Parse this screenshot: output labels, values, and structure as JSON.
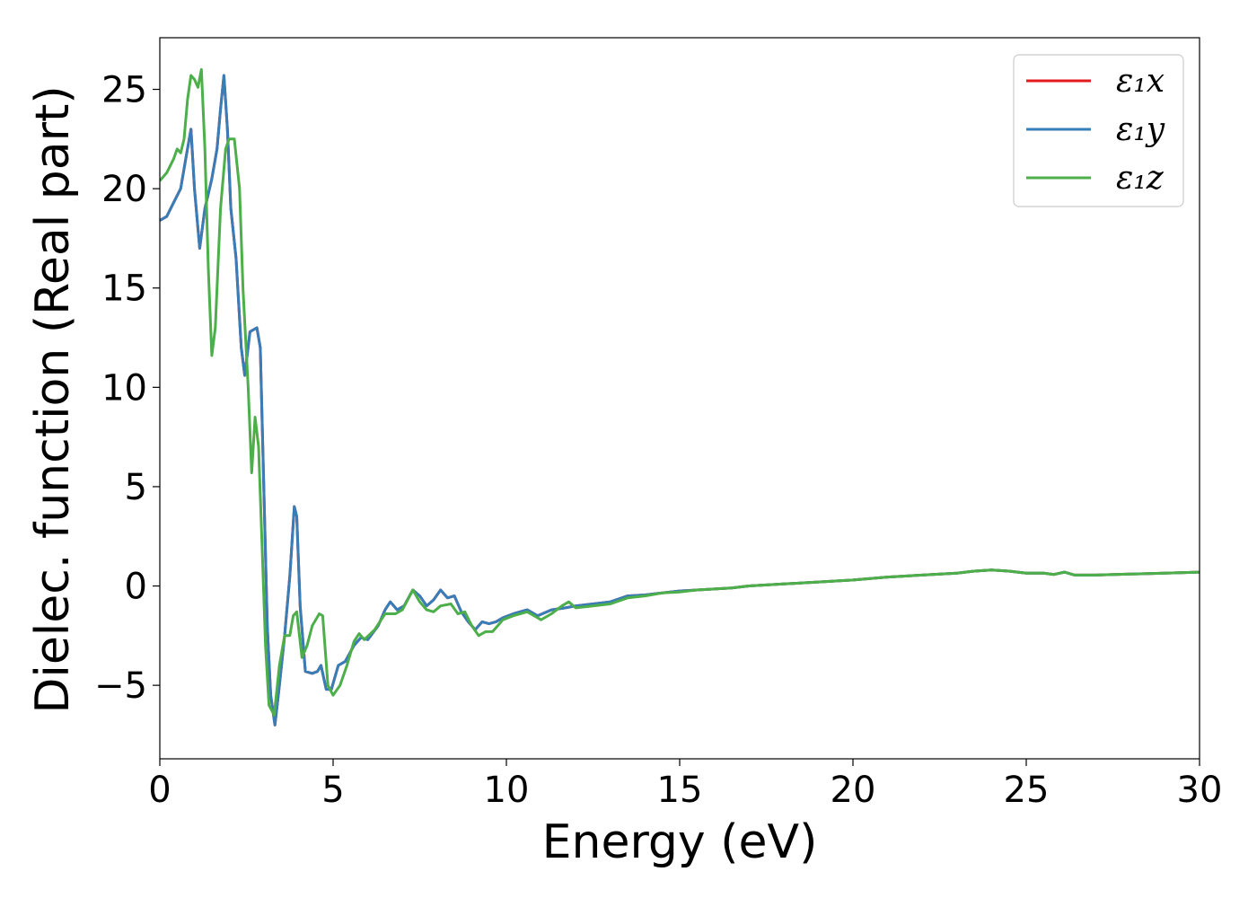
{
  "chart_data": {
    "type": "line",
    "title": "",
    "xlabel": "Energy (eV)",
    "ylabel": "Dielec. function (Real part)",
    "xlim": [
      0,
      30
    ],
    "ylim": [
      -8.7,
      27.6
    ],
    "xticks": [
      0,
      5,
      10,
      15,
      20,
      25,
      30
    ],
    "xtick_labels": [
      "0",
      "5",
      "10",
      "15",
      "20",
      "25",
      "30"
    ],
    "yticks": [
      -5,
      0,
      5,
      10,
      15,
      20,
      25
    ],
    "ytick_labels": [
      "−5",
      "0",
      "5",
      "10",
      "15",
      "20",
      "25"
    ],
    "grid": false,
    "legend_position": "top-right",
    "series": [
      {
        "name": "ε₁x",
        "color": "#e41a1c",
        "points": [
          [
            0,
            18.4
          ],
          [
            0.2,
            18.6
          ],
          [
            0.4,
            19.3
          ],
          [
            0.6,
            20.0
          ],
          [
            0.75,
            21.5
          ],
          [
            0.9,
            23.0
          ],
          [
            1.0,
            20.0
          ],
          [
            1.15,
            17.0
          ],
          [
            1.3,
            19.0
          ],
          [
            1.5,
            20.5
          ],
          [
            1.65,
            22.0
          ],
          [
            1.75,
            24.0
          ],
          [
            1.85,
            25.7
          ],
          [
            1.95,
            23.0
          ],
          [
            2.05,
            19.0
          ],
          [
            2.2,
            16.5
          ],
          [
            2.35,
            12.0
          ],
          [
            2.45,
            10.6
          ],
          [
            2.6,
            12.8
          ],
          [
            2.8,
            13.0
          ],
          [
            2.9,
            12.0
          ],
          [
            3.0,
            5.0
          ],
          [
            3.1,
            -2.0
          ],
          [
            3.2,
            -5.5
          ],
          [
            3.32,
            -7.0
          ],
          [
            3.45,
            -5.0
          ],
          [
            3.6,
            -2.5
          ],
          [
            3.75,
            0.5
          ],
          [
            3.88,
            4.0
          ],
          [
            3.95,
            3.5
          ],
          [
            4.05,
            -1.0
          ],
          [
            4.2,
            -4.3
          ],
          [
            4.4,
            -4.4
          ],
          [
            4.55,
            -4.3
          ],
          [
            4.65,
            -4.0
          ],
          [
            4.8,
            -5.2
          ],
          [
            4.95,
            -5.2
          ],
          [
            5.15,
            -4.0
          ],
          [
            5.35,
            -3.8
          ],
          [
            5.6,
            -3.0
          ],
          [
            5.8,
            -2.6
          ],
          [
            6.0,
            -2.7
          ],
          [
            6.3,
            -2.0
          ],
          [
            6.5,
            -1.2
          ],
          [
            6.65,
            -0.8
          ],
          [
            6.85,
            -1.2
          ],
          [
            7.05,
            -1.0
          ],
          [
            7.3,
            -0.2
          ],
          [
            7.5,
            -0.5
          ],
          [
            7.7,
            -1.0
          ],
          [
            7.9,
            -0.7
          ],
          [
            8.1,
            -0.2
          ],
          [
            8.3,
            -0.6
          ],
          [
            8.5,
            -0.5
          ],
          [
            8.7,
            -1.3
          ],
          [
            8.9,
            -1.8
          ],
          [
            9.1,
            -2.2
          ],
          [
            9.3,
            -1.8
          ],
          [
            9.5,
            -1.9
          ],
          [
            9.7,
            -1.8
          ],
          [
            9.9,
            -1.6
          ],
          [
            10.2,
            -1.4
          ],
          [
            10.6,
            -1.2
          ],
          [
            10.9,
            -1.5
          ],
          [
            11.3,
            -1.2
          ],
          [
            11.7,
            -1.1
          ],
          [
            12.0,
            -1.0
          ],
          [
            12.5,
            -0.9
          ],
          [
            13.0,
            -0.8
          ],
          [
            13.5,
            -0.5
          ],
          [
            14.0,
            -0.45
          ],
          [
            14.5,
            -0.35
          ],
          [
            15.0,
            -0.25
          ],
          [
            15.5,
            -0.2
          ],
          [
            16.0,
            -0.15
          ],
          [
            16.5,
            -0.1
          ],
          [
            17.0,
            0.0
          ],
          [
            18.0,
            0.1
          ],
          [
            19.0,
            0.2
          ],
          [
            20.0,
            0.3
          ],
          [
            21.0,
            0.45
          ],
          [
            22.0,
            0.55
          ],
          [
            23.0,
            0.65
          ],
          [
            23.5,
            0.75
          ],
          [
            24.0,
            0.8
          ],
          [
            24.5,
            0.75
          ],
          [
            25.0,
            0.65
          ],
          [
            25.5,
            0.65
          ],
          [
            25.8,
            0.58
          ],
          [
            26.1,
            0.7
          ],
          [
            26.4,
            0.55
          ],
          [
            26.7,
            0.55
          ],
          [
            27.0,
            0.55
          ],
          [
            28.0,
            0.6
          ],
          [
            29.0,
            0.65
          ],
          [
            30.0,
            0.7
          ]
        ]
      },
      {
        "name": "ε₁y",
        "color": "#377eb8",
        "points": [
          [
            0,
            18.4
          ],
          [
            0.2,
            18.6
          ],
          [
            0.4,
            19.3
          ],
          [
            0.6,
            20.0
          ],
          [
            0.75,
            21.5
          ],
          [
            0.9,
            23.0
          ],
          [
            1.0,
            20.0
          ],
          [
            1.15,
            17.0
          ],
          [
            1.3,
            19.0
          ],
          [
            1.5,
            20.5
          ],
          [
            1.65,
            22.0
          ],
          [
            1.75,
            24.0
          ],
          [
            1.85,
            25.7
          ],
          [
            1.95,
            23.0
          ],
          [
            2.05,
            19.0
          ],
          [
            2.2,
            16.5
          ],
          [
            2.35,
            12.0
          ],
          [
            2.45,
            10.6
          ],
          [
            2.6,
            12.8
          ],
          [
            2.8,
            13.0
          ],
          [
            2.9,
            12.0
          ],
          [
            3.0,
            5.0
          ],
          [
            3.1,
            -2.0
          ],
          [
            3.2,
            -5.5
          ],
          [
            3.32,
            -7.0
          ],
          [
            3.45,
            -5.0
          ],
          [
            3.6,
            -2.5
          ],
          [
            3.75,
            0.5
          ],
          [
            3.88,
            4.0
          ],
          [
            3.95,
            3.5
          ],
          [
            4.05,
            -1.0
          ],
          [
            4.2,
            -4.3
          ],
          [
            4.4,
            -4.4
          ],
          [
            4.55,
            -4.3
          ],
          [
            4.65,
            -4.0
          ],
          [
            4.8,
            -5.2
          ],
          [
            4.95,
            -5.2
          ],
          [
            5.15,
            -4.0
          ],
          [
            5.35,
            -3.8
          ],
          [
            5.6,
            -3.0
          ],
          [
            5.8,
            -2.6
          ],
          [
            6.0,
            -2.7
          ],
          [
            6.3,
            -2.0
          ],
          [
            6.5,
            -1.2
          ],
          [
            6.65,
            -0.8
          ],
          [
            6.85,
            -1.2
          ],
          [
            7.05,
            -1.0
          ],
          [
            7.3,
            -0.2
          ],
          [
            7.5,
            -0.5
          ],
          [
            7.7,
            -1.0
          ],
          [
            7.9,
            -0.7
          ],
          [
            8.1,
            -0.2
          ],
          [
            8.3,
            -0.6
          ],
          [
            8.5,
            -0.5
          ],
          [
            8.7,
            -1.3
          ],
          [
            8.9,
            -1.8
          ],
          [
            9.1,
            -2.2
          ],
          [
            9.3,
            -1.8
          ],
          [
            9.5,
            -1.9
          ],
          [
            9.7,
            -1.8
          ],
          [
            9.9,
            -1.6
          ],
          [
            10.2,
            -1.4
          ],
          [
            10.6,
            -1.2
          ],
          [
            10.9,
            -1.5
          ],
          [
            11.3,
            -1.2
          ],
          [
            11.7,
            -1.1
          ],
          [
            12.0,
            -1.0
          ],
          [
            12.5,
            -0.9
          ],
          [
            13.0,
            -0.8
          ],
          [
            13.5,
            -0.5
          ],
          [
            14.0,
            -0.45
          ],
          [
            14.5,
            -0.35
          ],
          [
            15.0,
            -0.25
          ],
          [
            15.5,
            -0.2
          ],
          [
            16.0,
            -0.15
          ],
          [
            16.5,
            -0.1
          ],
          [
            17.0,
            0.0
          ],
          [
            18.0,
            0.1
          ],
          [
            19.0,
            0.2
          ],
          [
            20.0,
            0.3
          ],
          [
            21.0,
            0.45
          ],
          [
            22.0,
            0.55
          ],
          [
            23.0,
            0.65
          ],
          [
            23.5,
            0.75
          ],
          [
            24.0,
            0.8
          ],
          [
            24.5,
            0.75
          ],
          [
            25.0,
            0.65
          ],
          [
            25.5,
            0.65
          ],
          [
            25.8,
            0.58
          ],
          [
            26.1,
            0.7
          ],
          [
            26.4,
            0.55
          ],
          [
            26.7,
            0.55
          ],
          [
            27.0,
            0.55
          ],
          [
            28.0,
            0.6
          ],
          [
            29.0,
            0.65
          ],
          [
            30.0,
            0.7
          ]
        ]
      },
      {
        "name": "ε₁z",
        "color": "#4daf4a",
        "points": [
          [
            0,
            20.4
          ],
          [
            0.2,
            20.8
          ],
          [
            0.4,
            21.5
          ],
          [
            0.5,
            22.0
          ],
          [
            0.6,
            21.8
          ],
          [
            0.7,
            22.5
          ],
          [
            0.8,
            24.5
          ],
          [
            0.9,
            25.7
          ],
          [
            1.0,
            25.5
          ],
          [
            1.1,
            25.1
          ],
          [
            1.2,
            26.0
          ],
          [
            1.3,
            22.0
          ],
          [
            1.4,
            16.0
          ],
          [
            1.5,
            11.6
          ],
          [
            1.6,
            13.0
          ],
          [
            1.75,
            19.0
          ],
          [
            1.9,
            22.0
          ],
          [
            2.0,
            22.5
          ],
          [
            2.15,
            22.5
          ],
          [
            2.3,
            20.0
          ],
          [
            2.4,
            15.0
          ],
          [
            2.55,
            10.0
          ],
          [
            2.65,
            5.7
          ],
          [
            2.75,
            8.5
          ],
          [
            2.85,
            7.0
          ],
          [
            2.95,
            2.0
          ],
          [
            3.05,
            -3.0
          ],
          [
            3.15,
            -6.0
          ],
          [
            3.3,
            -6.5
          ],
          [
            3.45,
            -4.0
          ],
          [
            3.6,
            -2.5
          ],
          [
            3.75,
            -2.5
          ],
          [
            3.85,
            -1.5
          ],
          [
            3.95,
            -1.3
          ],
          [
            4.1,
            -3.6
          ],
          [
            4.25,
            -3.0
          ],
          [
            4.4,
            -2.0
          ],
          [
            4.6,
            -1.4
          ],
          [
            4.7,
            -1.5
          ],
          [
            4.85,
            -5.0
          ],
          [
            5.0,
            -5.5
          ],
          [
            5.2,
            -5.0
          ],
          [
            5.4,
            -4.0
          ],
          [
            5.6,
            -2.8
          ],
          [
            5.75,
            -2.4
          ],
          [
            5.9,
            -2.7
          ],
          [
            6.2,
            -2.2
          ],
          [
            6.5,
            -1.4
          ],
          [
            6.8,
            -1.4
          ],
          [
            7.0,
            -1.2
          ],
          [
            7.3,
            -0.2
          ],
          [
            7.5,
            -0.8
          ],
          [
            7.7,
            -1.2
          ],
          [
            7.9,
            -1.3
          ],
          [
            8.1,
            -1.0
          ],
          [
            8.4,
            -0.9
          ],
          [
            8.6,
            -1.4
          ],
          [
            8.8,
            -1.3
          ],
          [
            9.0,
            -2.0
          ],
          [
            9.2,
            -2.5
          ],
          [
            9.4,
            -2.3
          ],
          [
            9.6,
            -2.3
          ],
          [
            9.9,
            -1.7
          ],
          [
            10.2,
            -1.5
          ],
          [
            10.6,
            -1.3
          ],
          [
            10.8,
            -1.5
          ],
          [
            11.0,
            -1.7
          ],
          [
            11.3,
            -1.4
          ],
          [
            11.6,
            -1.0
          ],
          [
            11.8,
            -0.8
          ],
          [
            12.0,
            -1.1
          ],
          [
            12.5,
            -1.0
          ],
          [
            13.0,
            -0.9
          ],
          [
            13.5,
            -0.6
          ],
          [
            14.0,
            -0.5
          ],
          [
            14.5,
            -0.35
          ],
          [
            15.0,
            -0.3
          ],
          [
            15.5,
            -0.2
          ],
          [
            16.0,
            -0.15
          ],
          [
            16.5,
            -0.1
          ],
          [
            17.0,
            0.0
          ],
          [
            18.0,
            0.1
          ],
          [
            19.0,
            0.2
          ],
          [
            20.0,
            0.3
          ],
          [
            21.0,
            0.45
          ],
          [
            22.0,
            0.55
          ],
          [
            23.0,
            0.65
          ],
          [
            23.5,
            0.75
          ],
          [
            24.0,
            0.8
          ],
          [
            24.5,
            0.75
          ],
          [
            25.0,
            0.65
          ],
          [
            25.5,
            0.65
          ],
          [
            25.8,
            0.58
          ],
          [
            26.1,
            0.7
          ],
          [
            26.4,
            0.55
          ],
          [
            26.7,
            0.55
          ],
          [
            27.0,
            0.55
          ],
          [
            28.0,
            0.6
          ],
          [
            29.0,
            0.65
          ],
          [
            30.0,
            0.7
          ]
        ]
      }
    ]
  }
}
